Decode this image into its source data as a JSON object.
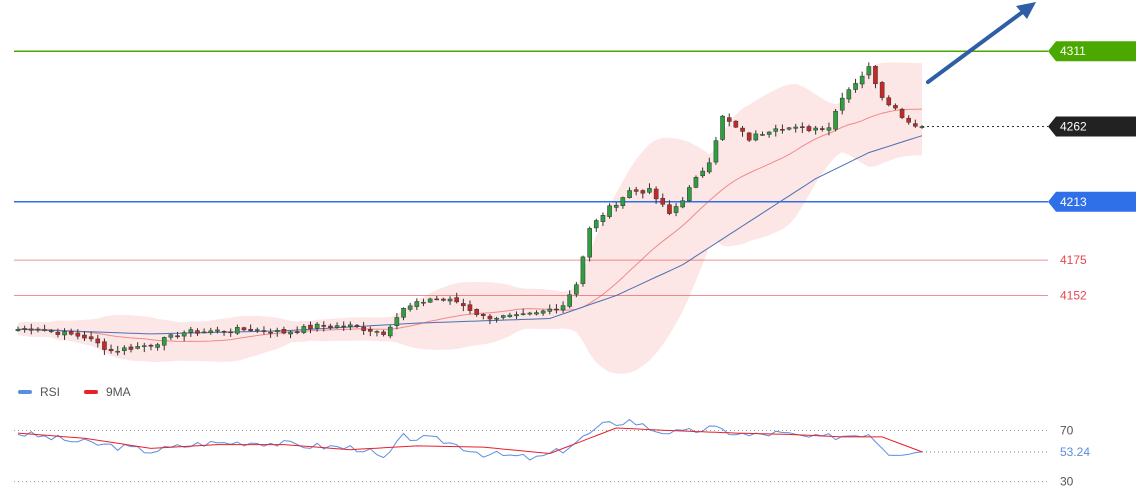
{
  "chart_data": [
    {
      "type": "candlestick",
      "ylim": [
        4110,
        4330
      ],
      "price_levels": [
        {
          "label": "4311",
          "value": 4311,
          "color": "#4aa800",
          "style": "badge"
        },
        {
          "label": "4262",
          "value": 4262,
          "color": "#222222",
          "style": "badge"
        },
        {
          "label": "4213",
          "value": 4213,
          "color": "#2f6fe8",
          "style": "badge"
        },
        {
          "label": "4175",
          "value": 4175,
          "color": "#e8464f",
          "style": "text"
        },
        {
          "label": "4152",
          "value": 4152,
          "color": "#e8464f",
          "style": "text"
        }
      ],
      "close_anchors": [
        [
          0,
          4130
        ],
        [
          3,
          4131
        ],
        [
          6,
          4128
        ],
        [
          10,
          4125
        ],
        [
          14,
          4116
        ],
        [
          20,
          4120
        ],
        [
          25,
          4128
        ],
        [
          30,
          4129
        ],
        [
          35,
          4130
        ],
        [
          40,
          4128
        ],
        [
          45,
          4132
        ],
        [
          50,
          4132
        ],
        [
          55,
          4128
        ],
        [
          58,
          4143
        ],
        [
          62,
          4150
        ],
        [
          66,
          4148
        ],
        [
          70,
          4138
        ],
        [
          75,
          4138
        ],
        [
          78,
          4140
        ],
        [
          82,
          4146
        ],
        [
          84,
          4160
        ],
        [
          86,
          4195
        ],
        [
          88,
          4205
        ],
        [
          92,
          4220
        ],
        [
          95,
          4220
        ],
        [
          98,
          4205
        ],
        [
          100,
          4215
        ],
        [
          104,
          4240
        ],
        [
          106,
          4268
        ],
        [
          110,
          4254
        ],
        [
          114,
          4262
        ],
        [
          118,
          4260
        ],
        [
          122,
          4262
        ],
        [
          124,
          4282
        ],
        [
          128,
          4300
        ],
        [
          130,
          4282
        ],
        [
          134,
          4265
        ],
        [
          136,
          4262
        ]
      ],
      "sma_anchors": [
        [
          0,
          4130
        ],
        [
          20,
          4127
        ],
        [
          40,
          4129
        ],
        [
          60,
          4134
        ],
        [
          80,
          4137
        ],
        [
          90,
          4152
        ],
        [
          100,
          4172
        ],
        [
          110,
          4200
        ],
        [
          120,
          4228
        ],
        [
          128,
          4245
        ],
        [
          136,
          4256
        ]
      ],
      "candle_count": 137,
      "legend": [
        {
          "name": "RSI",
          "color": "#5b8de0"
        },
        {
          "name": "9MA",
          "color": "#e8202a"
        }
      ]
    },
    {
      "type": "line",
      "series_names": [
        "RSI",
        "9MA"
      ],
      "ylim": [
        25,
        90
      ],
      "tick_labels": [
        "70",
        "30"
      ],
      "ticks": [
        70,
        30
      ],
      "current_value_label": "53.24",
      "current_value": 53.24,
      "rsi_anchors": [
        [
          0,
          68
        ],
        [
          8,
          62
        ],
        [
          14,
          58
        ],
        [
          20,
          54
        ],
        [
          28,
          60
        ],
        [
          36,
          61
        ],
        [
          44,
          58
        ],
        [
          52,
          56
        ],
        [
          55,
          47
        ],
        [
          58,
          65
        ],
        [
          64,
          62
        ],
        [
          70,
          52
        ],
        [
          78,
          48
        ],
        [
          82,
          55
        ],
        [
          88,
          74
        ],
        [
          92,
          78
        ],
        [
          96,
          70
        ],
        [
          100,
          68
        ],
        [
          104,
          72
        ],
        [
          110,
          66
        ],
        [
          114,
          68
        ],
        [
          120,
          64
        ],
        [
          128,
          68
        ],
        [
          131,
          53
        ],
        [
          136,
          53.24
        ]
      ],
      "ma_anchors": [
        [
          0,
          68
        ],
        [
          10,
          64
        ],
        [
          20,
          56
        ],
        [
          30,
          59
        ],
        [
          40,
          59
        ],
        [
          50,
          55
        ],
        [
          60,
          58
        ],
        [
          70,
          57
        ],
        [
          80,
          52
        ],
        [
          90,
          72
        ],
        [
          98,
          70
        ],
        [
          108,
          68
        ],
        [
          116,
          67
        ],
        [
          124,
          65
        ],
        [
          130,
          65
        ],
        [
          136,
          53.24
        ]
      ]
    }
  ]
}
